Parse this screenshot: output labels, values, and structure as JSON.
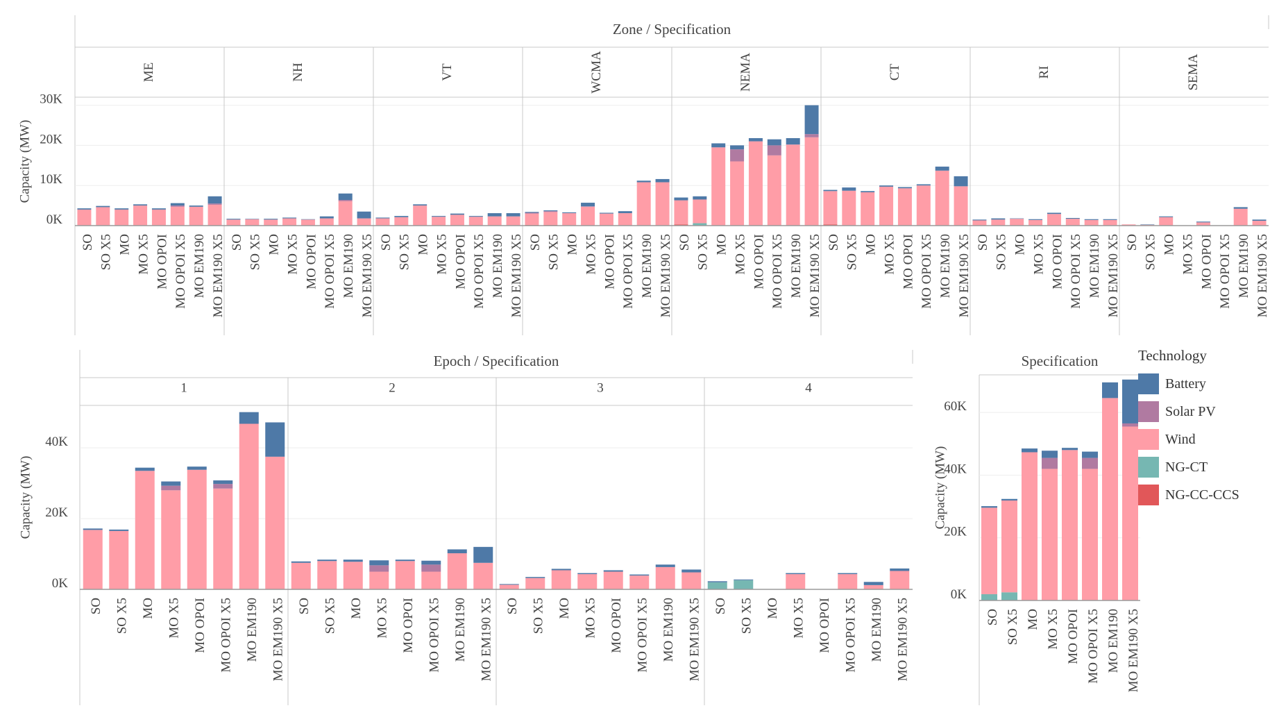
{
  "legend": {
    "title": "Technology",
    "items": [
      {
        "name": "Battery",
        "color": "#4e79a7"
      },
      {
        "name": "Solar PV",
        "color": "#b07aa1"
      },
      {
        "name": "Wind",
        "color": "#ff9da7"
      },
      {
        "name": "NG-CT",
        "color": "#76b7b2"
      },
      {
        "name": "NG-CC-CCS",
        "color": "#e15759"
      }
    ]
  },
  "chart_data": [
    {
      "type": "bar",
      "stacked": true,
      "title": "Zone / Specification",
      "ylabel": "Capacity (MW)",
      "ylim": [
        0,
        32000
      ],
      "yticks": [
        0,
        10000,
        20000,
        30000
      ],
      "ytick_labels": [
        "0K",
        "10K",
        "20K",
        "30K"
      ],
      "categories": [
        "SO",
        "SO X5",
        "MO",
        "MO X5",
        "MO OPOI",
        "MO OPOI X5",
        "MO EM190",
        "MO EM190 X5"
      ],
      "panels": [
        {
          "label": "ME",
          "ng_cc_ccs": [
            0,
            0,
            0,
            0,
            0,
            0,
            0,
            0
          ],
          "ng_ct": [
            0,
            0,
            0,
            0,
            0,
            0,
            0,
            0
          ],
          "wind": [
            4000,
            4600,
            4000,
            5000,
            4000,
            4700,
            4700,
            5200
          ],
          "solar_pv": [
            0,
            0,
            0,
            0,
            0,
            300,
            0,
            300
          ],
          "battery": [
            300,
            300,
            300,
            300,
            300,
            600,
            300,
            1800
          ]
        },
        {
          "label": "NH",
          "ng_cc_ccs": [
            0,
            0,
            0,
            0,
            0,
            0,
            0,
            0
          ],
          "ng_ct": [
            0,
            0,
            0,
            0,
            0,
            0,
            0,
            0
          ],
          "wind": [
            1500,
            1600,
            1500,
            1800,
            1500,
            1800,
            6100,
            1800
          ],
          "solar_pv": [
            0,
            0,
            0,
            0,
            0,
            0,
            300,
            0
          ],
          "battery": [
            200,
            100,
            200,
            200,
            100,
            500,
            1600,
            1700
          ]
        },
        {
          "label": "VT",
          "ng_cc_ccs": [
            0,
            0,
            0,
            0,
            0,
            0,
            0,
            0
          ],
          "ng_ct": [
            0,
            0,
            0,
            0,
            0,
            0,
            0,
            0
          ],
          "wind": [
            1800,
            2100,
            5000,
            2200,
            2700,
            2200,
            2300,
            2300
          ],
          "solar_pv": [
            0,
            0,
            0,
            0,
            0,
            0,
            0,
            0
          ],
          "battery": [
            200,
            300,
            300,
            200,
            300,
            200,
            800,
            800
          ]
        },
        {
          "label": "WCMA",
          "ng_cc_ccs": [
            200,
            200,
            0,
            0,
            0,
            0,
            0,
            0
          ],
          "ng_ct": [
            0,
            0,
            0,
            0,
            0,
            0,
            0,
            0
          ],
          "wind": [
            2800,
            3200,
            3100,
            4700,
            3000,
            3100,
            10800,
            10800
          ],
          "solar_pv": [
            200,
            200,
            0,
            100,
            0,
            0,
            0,
            0
          ],
          "battery": [
            200,
            200,
            200,
            900,
            200,
            500,
            400,
            800
          ]
        },
        {
          "label": "NEMA",
          "ng_cc_ccs": [
            300,
            0,
            0,
            0,
            0,
            0,
            0,
            0
          ],
          "ng_ct": [
            0,
            600,
            0,
            0,
            0,
            0,
            0,
            0
          ],
          "wind": [
            6000,
            5900,
            19500,
            16000,
            21000,
            17500,
            20200,
            22000
          ],
          "solar_pv": [
            0,
            0,
            0,
            3000,
            0,
            2500,
            0,
            800
          ],
          "battery": [
            700,
            800,
            1000,
            1000,
            800,
            1500,
            1600,
            7200
          ]
        },
        {
          "label": "CT",
          "ng_cc_ccs": [
            300,
            0,
            0,
            0,
            0,
            0,
            0,
            0
          ],
          "ng_ct": [
            0,
            0,
            0,
            0,
            0,
            0,
            0,
            0
          ],
          "wind": [
            8300,
            8700,
            8300,
            9700,
            9300,
            10000,
            13700,
            9800
          ],
          "solar_pv": [
            0,
            0,
            0,
            0,
            0,
            0,
            0,
            0
          ],
          "battery": [
            300,
            800,
            300,
            300,
            300,
            300,
            1000,
            2500
          ]
        },
        {
          "label": "RI",
          "ng_cc_ccs": [
            0,
            0,
            0,
            0,
            0,
            0,
            0,
            0
          ],
          "ng_ct": [
            0,
            0,
            0,
            0,
            0,
            0,
            0,
            0
          ],
          "wind": [
            1300,
            1500,
            1700,
            1400,
            2900,
            1700,
            1400,
            1400
          ],
          "solar_pv": [
            0,
            0,
            0,
            0,
            0,
            0,
            0,
            0
          ],
          "battery": [
            200,
            300,
            100,
            200,
            300,
            200,
            200,
            200
          ]
        },
        {
          "label": "SEMA",
          "ng_cc_ccs": [
            0,
            0,
            0,
            0,
            0,
            0,
            0,
            0
          ],
          "ng_ct": [
            0,
            0,
            0,
            0,
            0,
            0,
            0,
            0
          ],
          "wind": [
            300,
            200,
            2100,
            0,
            800,
            0,
            4200,
            1200
          ],
          "solar_pv": [
            0,
            0,
            0,
            0,
            0,
            0,
            0,
            0
          ],
          "battery": [
            0,
            100,
            200,
            0,
            200,
            0,
            400,
            300
          ]
        }
      ]
    },
    {
      "type": "bar",
      "stacked": true,
      "title": "Epoch / Specification",
      "ylabel": "Capacity (MW)",
      "ylim": [
        0,
        52000
      ],
      "yticks": [
        0,
        20000,
        40000
      ],
      "ytick_labels": [
        "0K",
        "20K",
        "40K"
      ],
      "categories": [
        "SO",
        "SO X5",
        "MO",
        "MO X5",
        "MO OPOI",
        "MO OPOI X5",
        "MO EM190",
        "MO EM190 X5"
      ],
      "panels": [
        {
          "label": "1",
          "ng_cc_ccs": [
            0,
            0,
            0,
            0,
            0,
            0,
            0,
            0
          ],
          "ng_ct": [
            0,
            0,
            0,
            0,
            0,
            0,
            0,
            0
          ],
          "wind": [
            16800,
            16500,
            33500,
            28000,
            33800,
            28500,
            46800,
            37500
          ],
          "solar_pv": [
            0,
            0,
            0,
            1300,
            0,
            1300,
            0,
            0
          ],
          "battery": [
            400,
            400,
            900,
            1200,
            900,
            1000,
            3300,
            9700
          ]
        },
        {
          "label": "2",
          "ng_cc_ccs": [
            0,
            0,
            0,
            0,
            0,
            0,
            0,
            0
          ],
          "ng_ct": [
            0,
            0,
            0,
            0,
            0,
            0,
            0,
            0
          ],
          "wind": [
            7500,
            8000,
            7800,
            5000,
            8000,
            5000,
            10200,
            7500
          ],
          "solar_pv": [
            0,
            0,
            0,
            1800,
            0,
            2000,
            0,
            0
          ],
          "battery": [
            400,
            400,
            600,
            1400,
            400,
            1100,
            1100,
            4500
          ]
        },
        {
          "label": "3",
          "ng_cc_ccs": [
            0,
            0,
            0,
            0,
            0,
            0,
            0,
            0
          ],
          "ng_ct": [
            0,
            0,
            0,
            0,
            0,
            0,
            0,
            0
          ],
          "wind": [
            1300,
            3200,
            5400,
            4300,
            5000,
            3900,
            6300,
            4800
          ],
          "solar_pv": [
            0,
            0,
            0,
            0,
            0,
            0,
            0,
            0
          ],
          "battery": [
            200,
            300,
            400,
            300,
            400,
            300,
            700,
            800
          ]
        },
        {
          "label": "4",
          "ng_cc_ccs": [
            0,
            0,
            0,
            0,
            0,
            0,
            0,
            0
          ],
          "ng_ct": [
            2000,
            2600,
            0,
            0,
            0,
            0,
            0,
            0
          ],
          "wind": [
            0,
            0,
            0,
            4300,
            0,
            4300,
            1200,
            5200
          ],
          "solar_pv": [
            0,
            0,
            0,
            0,
            0,
            0,
            0,
            0
          ],
          "battery": [
            300,
            200,
            0,
            300,
            0,
            300,
            900,
            700
          ]
        }
      ]
    },
    {
      "type": "bar",
      "stacked": true,
      "title": "Specification",
      "ylabel": "Capacity (MW)",
      "ylim": [
        0,
        72000
      ],
      "yticks": [
        0,
        20000,
        40000,
        60000
      ],
      "ytick_labels": [
        "0K",
        "20K",
        "40K",
        "60K"
      ],
      "categories": [
        "SO",
        "SO X5",
        "MO",
        "MO X5",
        "MO OPOI",
        "MO OPOI X5",
        "MO EM190",
        "MO EM190 X5"
      ],
      "panels": [
        {
          "label": "",
          "ng_cc_ccs": [
            0,
            0,
            0,
            0,
            0,
            0,
            0,
            0
          ],
          "ng_ct": [
            2000,
            2600,
            0,
            0,
            0,
            0,
            0,
            0
          ],
          "wind": [
            27600,
            29300,
            47300,
            42000,
            48000,
            42000,
            64600,
            55500
          ],
          "solar_pv": [
            0,
            0,
            0,
            3500,
            0,
            3500,
            0,
            1000
          ],
          "battery": [
            500,
            500,
            1200,
            2300,
            700,
            2000,
            5000,
            14000
          ]
        }
      ]
    }
  ]
}
